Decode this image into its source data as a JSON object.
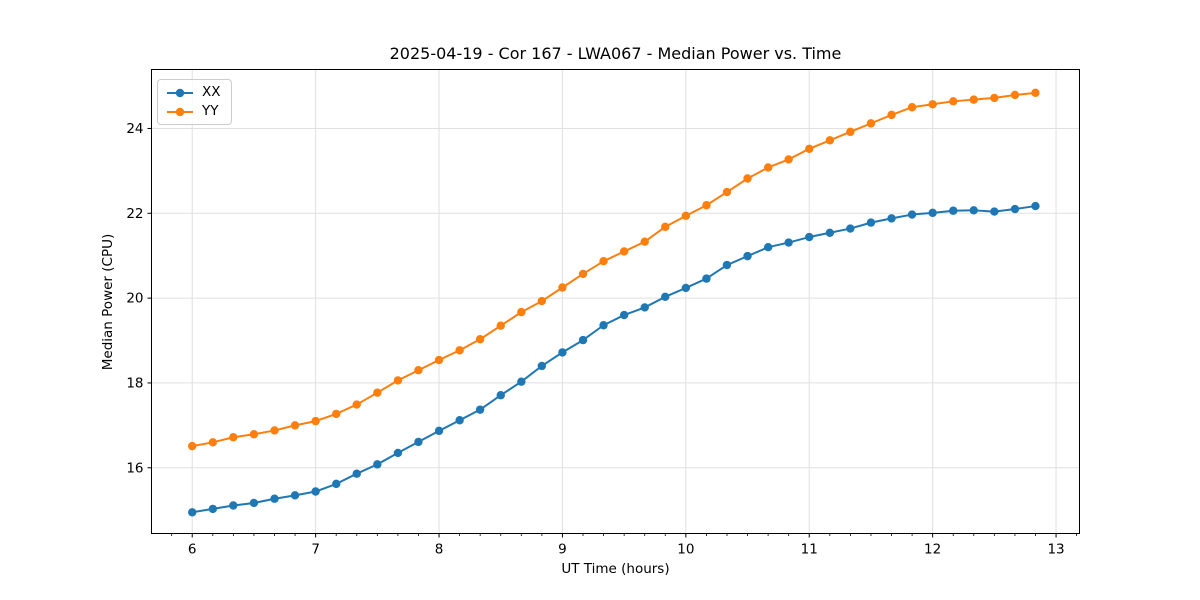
{
  "chart_data": {
    "type": "line",
    "title": "2025-04-19 - Cor 167 - LWA067 - Median Power vs. Time",
    "xlabel": "UT Time (hours)",
    "ylabel": "Median Power (CPU)",
    "xlim": [
      5.67,
      13.19
    ],
    "ylim": [
      14.45,
      25.39
    ],
    "xticks": [
      6,
      7,
      8,
      9,
      10,
      11,
      12,
      13
    ],
    "yticks": [
      16,
      18,
      20,
      22,
      24
    ],
    "x_minor_step_hours": 0.1667,
    "grid": true,
    "grid_color": "#e0e0e0",
    "legend_position": "upper-left",
    "marker": "o",
    "x": [
      6.0,
      6.167,
      6.333,
      6.5,
      6.667,
      6.833,
      7.0,
      7.167,
      7.333,
      7.5,
      7.667,
      7.833,
      8.0,
      8.167,
      8.333,
      8.5,
      8.667,
      8.833,
      9.0,
      9.167,
      9.333,
      9.5,
      9.667,
      9.833,
      10.0,
      10.167,
      10.333,
      10.5,
      10.667,
      10.833,
      11.0,
      11.167,
      11.333,
      11.5,
      11.667,
      11.833,
      12.0,
      12.167,
      12.333,
      12.5,
      12.667,
      12.833
    ],
    "series": [
      {
        "name": "XX",
        "color": "#1f77b4",
        "values": [
          14.95,
          15.03,
          15.11,
          15.17,
          15.27,
          15.35,
          15.44,
          15.62,
          15.86,
          16.08,
          16.35,
          16.61,
          16.87,
          17.12,
          17.37,
          17.71,
          18.03,
          18.4,
          18.72,
          19.01,
          19.36,
          19.6,
          19.78,
          20.03,
          20.24,
          20.46,
          20.78,
          20.99,
          21.2,
          21.31,
          21.44,
          21.54,
          21.64,
          21.78,
          21.88,
          21.97,
          22.01,
          22.06,
          22.07,
          22.04,
          22.1,
          22.17
        ]
      },
      {
        "name": "YY",
        "color": "#ff7f0e",
        "values": [
          16.51,
          16.6,
          16.72,
          16.79,
          16.88,
          17.0,
          17.1,
          17.27,
          17.49,
          17.77,
          18.06,
          18.3,
          18.54,
          18.77,
          19.03,
          19.35,
          19.67,
          19.93,
          20.25,
          20.57,
          20.87,
          21.1,
          21.33,
          21.68,
          21.94,
          22.19,
          22.5,
          22.82,
          23.08,
          23.27,
          23.52,
          23.72,
          23.92,
          24.12,
          24.32,
          24.5,
          24.57,
          24.64,
          24.68,
          24.72,
          24.79,
          24.84
        ]
      }
    ]
  }
}
